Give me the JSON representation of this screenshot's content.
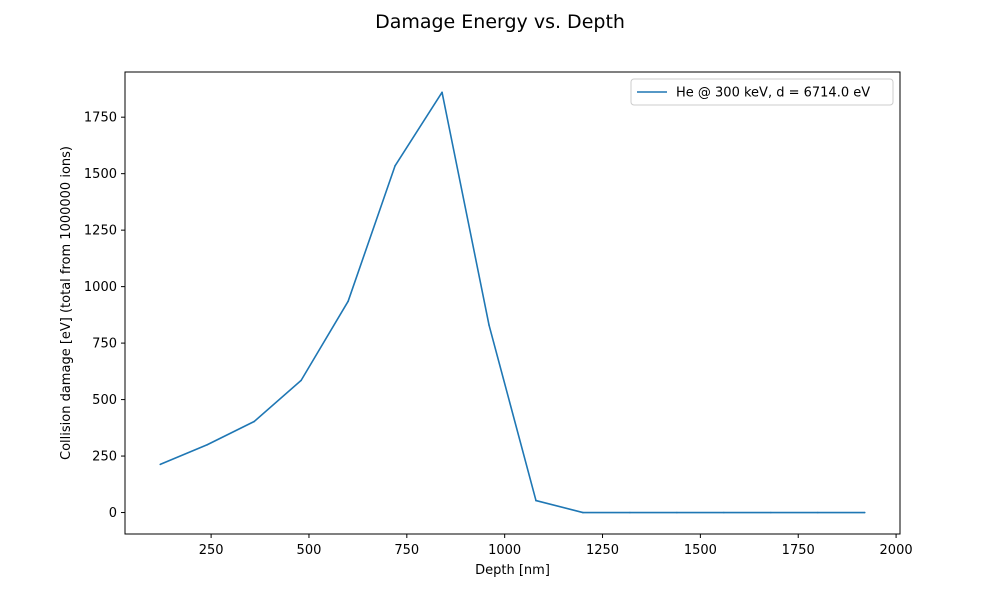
{
  "chart_data": {
    "type": "line",
    "title": "Damage Energy vs. Depth",
    "xlabel": "Depth [nm]",
    "ylabel": "Collision damage [eV] (total from 1000000 ions)",
    "xlim": [
      30,
      2010
    ],
    "ylim": [
      -95,
      1950
    ],
    "xticks": [
      250,
      500,
      750,
      1000,
      1250,
      1500,
      1750,
      2000
    ],
    "yticks": [
      0,
      250,
      500,
      750,
      1000,
      1250,
      1500,
      1750
    ],
    "grid": false,
    "legend_position": "top-right",
    "series": [
      {
        "name": "He @  300 keV, d = 6714.0 eV",
        "color": "#1f77b4",
        "x": [
          120,
          240,
          360,
          480,
          600,
          720,
          840,
          960,
          1080,
          1200,
          1320,
          1440,
          1560,
          1680,
          1800,
          1920
        ],
        "y": [
          213,
          300,
          403,
          585,
          935,
          1535,
          1860,
          830,
          53,
          0,
          0,
          0,
          0,
          0,
          0,
          0
        ]
      }
    ]
  }
}
